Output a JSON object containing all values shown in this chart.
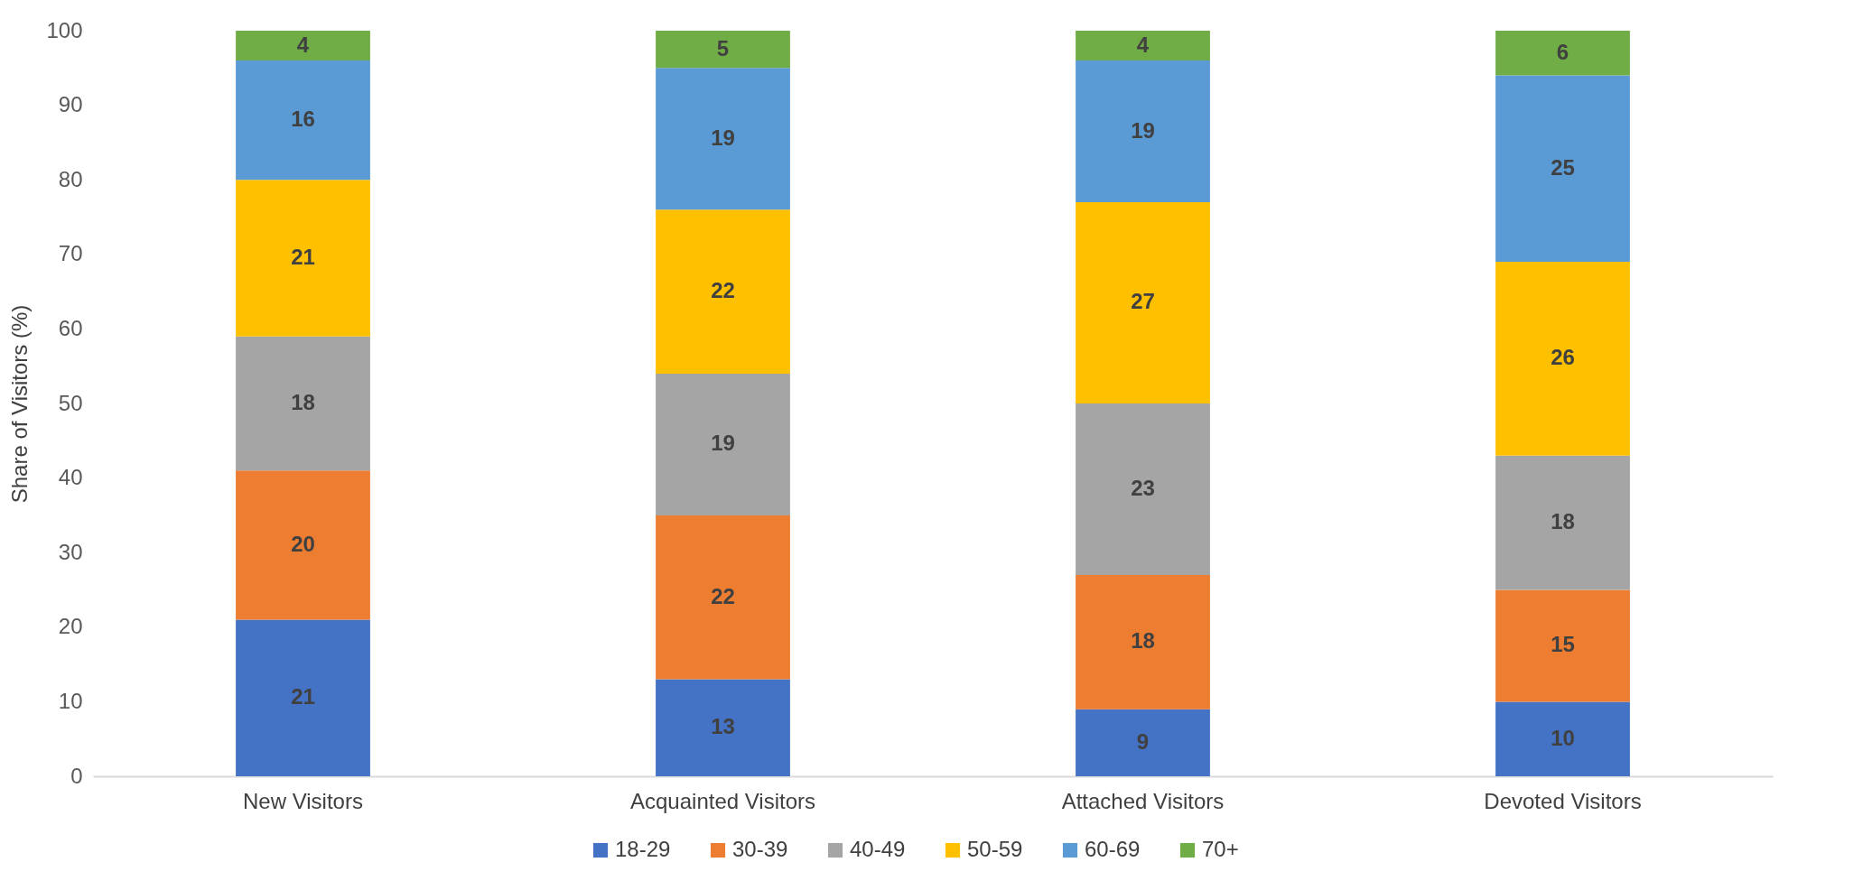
{
  "chart_data": {
    "type": "bar",
    "stacked": true,
    "ylabel": "Share of Visitors (%)",
    "categories": [
      "New Visitors",
      "Acquainted Visitors",
      "Attached Visitors",
      "Devoted Visitors"
    ],
    "series": [
      {
        "name": "18-29",
        "color": "#4472c4",
        "values": [
          21,
          13,
          9,
          10
        ]
      },
      {
        "name": "30-39",
        "color": "#ed7d31",
        "values": [
          20,
          22,
          18,
          15
        ]
      },
      {
        "name": "40-49",
        "color": "#a5a5a5",
        "values": [
          18,
          19,
          23,
          18
        ]
      },
      {
        "name": "50-59",
        "color": "#ffc000",
        "values": [
          21,
          22,
          27,
          26
        ]
      },
      {
        "name": "60-69",
        "color": "#5b9bd5",
        "values": [
          16,
          19,
          19,
          25
        ]
      },
      {
        "name": "70+",
        "color": "#70ad47",
        "values": [
          4,
          5,
          4,
          6
        ]
      }
    ],
    "ylim": [
      0,
      100
    ],
    "yticks": [
      0,
      10,
      20,
      30,
      40,
      50,
      60,
      70,
      80,
      90,
      100
    ],
    "grid": false,
    "legend": "bottom",
    "data_labels": true
  }
}
